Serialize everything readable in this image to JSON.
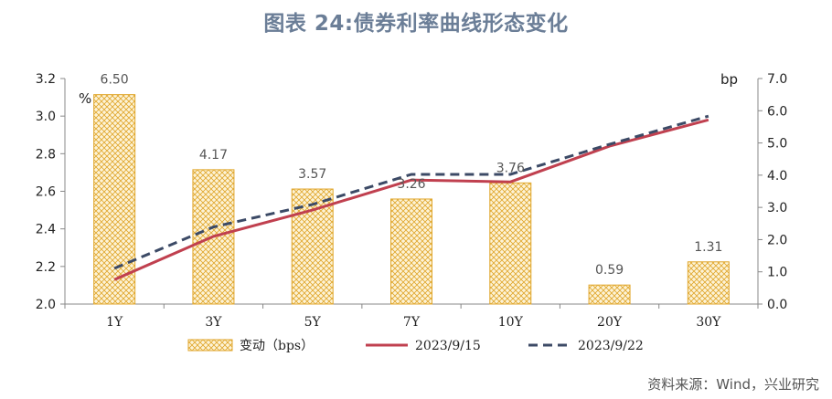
{
  "header": {
    "title": "图表 24:债券利率曲线形态变化"
  },
  "footer": {
    "source": "资料来源：Wind，兴业研究"
  },
  "colors": {
    "bar_fill": "#fdf3d6",
    "bar_stroke": "#e0a62b",
    "line1": "#c0404f",
    "line2": "#3c4a66",
    "axis": "#888888"
  },
  "chart_data": {
    "type": "bar",
    "categories": [
      "1Y",
      "3Y",
      "5Y",
      "7Y",
      "10Y",
      "20Y",
      "30Y"
    ],
    "left_axis": {
      "unit": "%",
      "ylim": [
        2.0,
        3.2
      ],
      "ticks": [
        "2.0",
        "2.2",
        "2.4",
        "2.6",
        "2.8",
        "3.0",
        "3.2"
      ]
    },
    "right_axis": {
      "unit": "bp",
      "ylim": [
        0.0,
        7.0
      ],
      "ticks": [
        "0.0",
        "1.0",
        "2.0",
        "3.0",
        "4.0",
        "5.0",
        "6.0",
        "7.0"
      ]
    },
    "series": [
      {
        "name": "变动（bps）",
        "kind": "bar",
        "axis": "right",
        "values": [
          6.5,
          4.17,
          3.57,
          3.26,
          3.76,
          0.59,
          1.31
        ],
        "labels": [
          "6.50",
          "4.17",
          "3.57",
          "3.26",
          "3.76",
          "0.59",
          "1.31"
        ]
      },
      {
        "name": "2023/9/15",
        "kind": "line",
        "style": "solid",
        "axis": "left",
        "values": [
          2.13,
          2.36,
          2.5,
          2.66,
          2.65,
          2.84,
          2.98
        ]
      },
      {
        "name": "2023/9/22",
        "kind": "line",
        "style": "dashed",
        "axis": "left",
        "values": [
          2.19,
          2.41,
          2.53,
          2.69,
          2.69,
          2.85,
          3.0
        ]
      }
    ],
    "legend_position": "bottom",
    "grid": false
  }
}
